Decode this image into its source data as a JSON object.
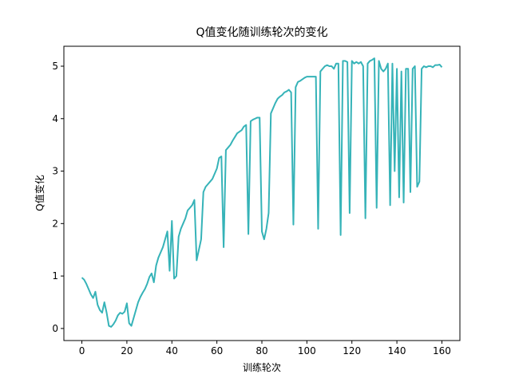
{
  "chart_data": {
    "type": "line",
    "title": "Q值变化随训练轮次的变化",
    "xlabel": "训练轮次",
    "ylabel": "Q值变化",
    "x": [
      0,
      1,
      2,
      3,
      4,
      5,
      6,
      7,
      8,
      9,
      10,
      11,
      12,
      13,
      14,
      15,
      16,
      17,
      18,
      19,
      20,
      21,
      22,
      23,
      24,
      25,
      26,
      27,
      28,
      29,
      30,
      31,
      32,
      33,
      34,
      35,
      36,
      37,
      38,
      39,
      40,
      41,
      42,
      43,
      44,
      45,
      46,
      47,
      48,
      49,
      50,
      51,
      52,
      53,
      54,
      55,
      56,
      57,
      58,
      59,
      60,
      61,
      62,
      63,
      64,
      65,
      66,
      67,
      68,
      69,
      70,
      71,
      72,
      73,
      74,
      75,
      76,
      77,
      78,
      79,
      80,
      81,
      82,
      83,
      84,
      85,
      86,
      87,
      88,
      89,
      90,
      91,
      92,
      93,
      94,
      95,
      96,
      97,
      98,
      99,
      100,
      101,
      102,
      103,
      104,
      105,
      106,
      107,
      108,
      109,
      110,
      111,
      112,
      113,
      114,
      115,
      116,
      117,
      118,
      119,
      120,
      121,
      122,
      123,
      124,
      125,
      126,
      127,
      128,
      129,
      130,
      131,
      132,
      133,
      134,
      135,
      136,
      137,
      138,
      139,
      140,
      141,
      142,
      143,
      144,
      145,
      146,
      147,
      148,
      149,
      150,
      151,
      152,
      153,
      154,
      155,
      156,
      157,
      158,
      159,
      160
    ],
    "series": [
      {
        "color": "#36b3b8",
        "values": [
          0.97,
          0.93,
          0.85,
          0.75,
          0.65,
          0.58,
          0.7,
          0.45,
          0.35,
          0.3,
          0.5,
          0.3,
          0.05,
          0.03,
          0.08,
          0.15,
          0.25,
          0.3,
          0.28,
          0.32,
          0.48,
          0.1,
          0.05,
          0.2,
          0.35,
          0.5,
          0.6,
          0.68,
          0.75,
          0.85,
          0.98,
          1.05,
          0.88,
          1.2,
          1.35,
          1.45,
          1.55,
          1.7,
          1.85,
          1.1,
          2.05,
          0.95,
          1.0,
          1.75,
          1.9,
          2.0,
          2.1,
          2.25,
          2.3,
          2.35,
          2.45,
          1.3,
          1.5,
          1.7,
          2.6,
          2.7,
          2.75,
          2.8,
          2.85,
          2.95,
          3.05,
          3.25,
          3.28,
          1.55,
          3.4,
          3.45,
          3.5,
          3.58,
          3.65,
          3.72,
          3.75,
          3.78,
          3.85,
          3.88,
          1.8,
          3.95,
          3.98,
          4.0,
          4.02,
          4.02,
          1.85,
          1.7,
          1.9,
          2.2,
          4.1,
          4.2,
          4.3,
          4.38,
          4.42,
          4.45,
          4.5,
          4.52,
          4.55,
          4.5,
          1.98,
          4.6,
          4.7,
          4.72,
          4.75,
          4.78,
          4.8,
          4.8,
          4.8,
          4.8,
          4.8,
          1.9,
          4.9,
          4.95,
          5.0,
          5.02,
          5.0,
          5.0,
          4.95,
          5.05,
          5.05,
          1.78,
          5.1,
          5.1,
          5.08,
          2.2,
          5.1,
          5.05,
          5.08,
          5.05,
          5.08,
          5.0,
          2.1,
          5.05,
          5.1,
          5.12,
          5.15,
          2.3,
          5.1,
          4.95,
          4.9,
          4.95,
          5.05,
          2.35,
          5.05,
          3.0,
          4.95,
          2.5,
          4.9,
          2.4,
          4.95,
          4.95,
          2.6,
          4.95,
          5.0,
          2.7,
          2.8,
          4.95,
          5.0,
          4.98,
          5.0,
          5.0,
          4.98,
          5.02,
          5.02,
          5.03,
          4.98
        ]
      }
    ],
    "xlim": [
      -8,
      168
    ],
    "xticks": [
      0,
      20,
      40,
      60,
      80,
      100,
      120,
      140,
      160
    ],
    "ylim": [
      -0.23,
      5.38
    ],
    "yticks": [
      0,
      1,
      2,
      3,
      4,
      5
    ]
  }
}
